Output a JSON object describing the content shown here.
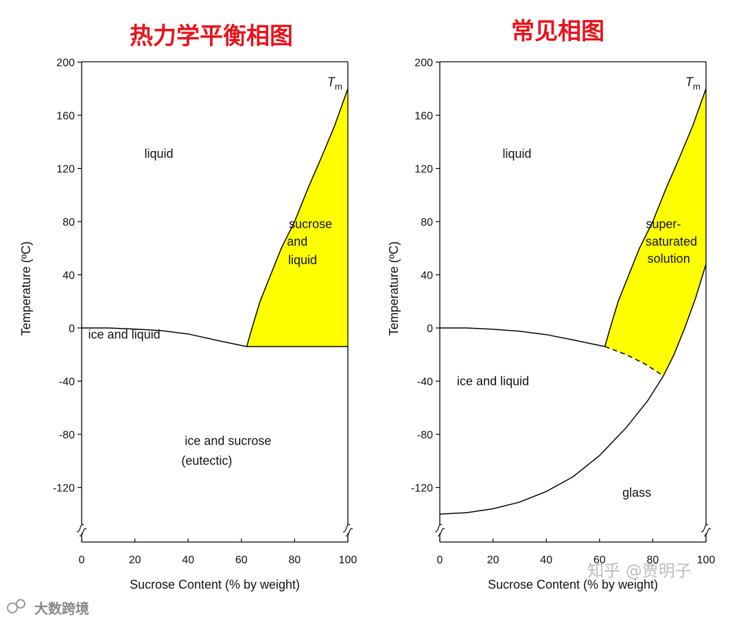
{
  "colors": {
    "title": "#e8121b",
    "fill": "#ffff00",
    "line": "#000000"
  },
  "watermarks": {
    "zhihu": "知乎 @贾明子",
    "logo": "大数跨境"
  },
  "chart_data": [
    {
      "type": "line",
      "title": "热力学平衡相图",
      "xlabel": "Sucrose Content (% by weight)",
      "ylabel": "Temperature (ºC)",
      "xlim": [
        0,
        100
      ],
      "ylim": [
        -150,
        200
      ],
      "axis_break": "y below -130",
      "x_ticks": [
        "0",
        "20",
        "40",
        "60",
        "80",
        "100"
      ],
      "y_ticks": [
        "200",
        "160",
        "120",
        "80",
        "40",
        "0",
        "-40",
        "-80",
        "-120"
      ],
      "tm_label": "Tm",
      "series": [
        {
          "values": [
            [
              0,
              0
            ],
            [
              10,
              0
            ],
            [
              20,
              -0.8
            ],
            [
              30,
              -2
            ],
            [
              40,
              -4.5
            ],
            [
              50,
              -9
            ],
            [
              62,
              -14
            ]
          ]
        },
        {
          "values": [
            [
              62,
              -14
            ],
            [
              100,
              -14
            ]
          ]
        },
        {
          "values": [
            [
              62,
              -14
            ],
            [
              64,
              0
            ],
            [
              67,
              20
            ],
            [
              71,
              40
            ],
            [
              75,
              60
            ],
            [
              80,
              80
            ],
            [
              85,
              105
            ],
            [
              90,
              128
            ],
            [
              95,
              152
            ],
            [
              100,
              180
            ]
          ]
        }
      ],
      "shaded_region": "sucrose and liquid",
      "regions": [
        {
          "label": "liquid",
          "x": 29,
          "y": 128
        },
        {
          "label": "ice and liquid",
          "x": 16,
          "y": -8
        },
        {
          "label": "sucrose",
          "x": 86,
          "y": 75
        },
        {
          "label": "and",
          "x": 81,
          "y": 62
        },
        {
          "label": "liquid",
          "x": 83,
          "y": 48
        },
        {
          "label": "ice and sucrose",
          "x": 55,
          "y": -88
        },
        {
          "label": "(eutectic)",
          "x": 47,
          "y": -103
        }
      ]
    },
    {
      "type": "line",
      "title": "常见相图",
      "xlabel": "Sucrose Content (% by weight)",
      "ylabel": "Temperature (ºC)",
      "xlim": [
        0,
        100
      ],
      "ylim": [
        -150,
        200
      ],
      "axis_break": "y below -130",
      "x_ticks": [
        "0",
        "20",
        "40",
        "60",
        "80",
        "100"
      ],
      "y_ticks": [
        "200",
        "160",
        "120",
        "80",
        "40",
        "0",
        "-40",
        "-80",
        "-120"
      ],
      "tm_label": "Tm",
      "series": [
        {
          "values": [
            [
              0,
              0
            ],
            [
              10,
              0
            ],
            [
              20,
              -1
            ],
            [
              30,
              -2.5
            ],
            [
              40,
              -5
            ],
            [
              50,
              -9
            ],
            [
              62,
              -14
            ]
          ]
        },
        {
          "values": [
            [
              62,
              -14
            ],
            [
              64,
              0
            ],
            [
              67,
              20
            ],
            [
              71,
              40
            ],
            [
              75,
              60
            ],
            [
              80,
              80
            ],
            [
              85,
              105
            ],
            [
              90,
              128
            ],
            [
              95,
              152
            ],
            [
              100,
              180
            ]
          ]
        },
        {
          "dashed": true,
          "values": [
            [
              62,
              -14
            ],
            [
              70,
              -20
            ],
            [
              77,
              -27
            ],
            [
              84,
              -36
            ]
          ]
        },
        {
          "values": [
            [
              0,
              -140
            ],
            [
              10,
              -139
            ],
            [
              20,
              -136
            ],
            [
              30,
              -131
            ],
            [
              40,
              -123
            ],
            [
              50,
              -112
            ],
            [
              60,
              -96
            ],
            [
              70,
              -75
            ],
            [
              78,
              -55
            ],
            [
              84,
              -36
            ],
            [
              88,
              -20
            ],
            [
              92,
              0
            ],
            [
              96,
              22
            ],
            [
              100,
              48
            ]
          ]
        }
      ],
      "shaded_region": "super-saturated solution",
      "regions": [
        {
          "label": "liquid",
          "x": 29,
          "y": 128
        },
        {
          "label": "super-",
          "x": 84,
          "y": 75
        },
        {
          "label": "saturated",
          "x": 87,
          "y": 62
        },
        {
          "label": "solution",
          "x": 86,
          "y": 49
        },
        {
          "label": "ice and liquid",
          "x": 20,
          "y": -43
        },
        {
          "label": "glass",
          "x": 74,
          "y": -127
        }
      ]
    }
  ]
}
